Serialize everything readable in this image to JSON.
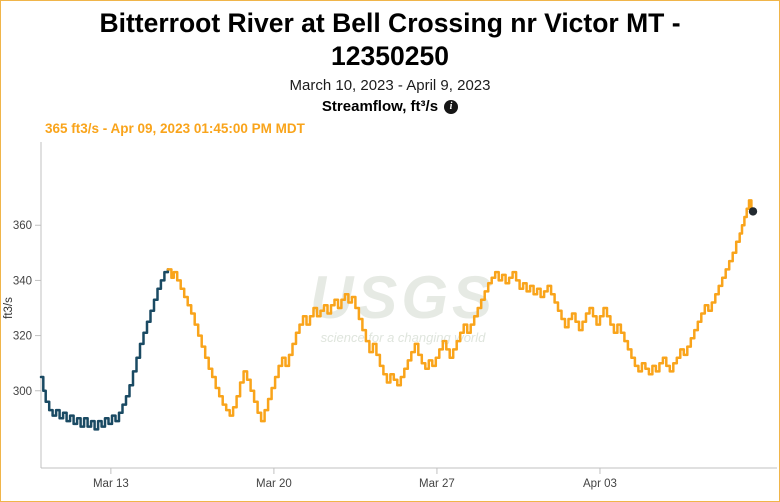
{
  "page": {
    "border_color": "#f0b54a",
    "background": "#ffffff"
  },
  "header": {
    "title_line1": "Bitterroot River at Bell Crossing nr Victor MT -",
    "title_line2": "12350250",
    "date_range": "March 10, 2023 - April 9, 2023",
    "parameter_label": "Streamflow, ft³/s",
    "info_icon_glyph": "i"
  },
  "current_reading": {
    "label": "365 ft3/s - Apr 09, 2023 01:45:00 PM MDT",
    "color": "#f9a41b"
  },
  "chart_data": {
    "type": "line",
    "interpolation": "step-after",
    "title": "Bitterroot River at Bell Crossing nr Victor MT - 12350250",
    "ylabel": "ft3/s",
    "grid": false,
    "legend_position": "none",
    "axis_color": "#c0c0c0",
    "tick_label_color": "#444444",
    "x_axis": {
      "unit": "days since 2023-03-10",
      "lim": [
        0,
        31
      ],
      "ticks": [
        {
          "x": 3,
          "label": "Mar 13"
        },
        {
          "x": 10,
          "label": "Mar 20"
        },
        {
          "x": 17,
          "label": "Mar 27"
        },
        {
          "x": 24,
          "label": "Apr 03"
        }
      ]
    },
    "y_axis": {
      "lim": [
        272,
        388
      ],
      "ticks": [
        300,
        320,
        340,
        360
      ]
    },
    "watermark": {
      "text": "USGS",
      "tagline": "science for a changing world",
      "color": "#e6eae4",
      "tagline_color": "#dfe5dd"
    },
    "series": [
      {
        "name": "streamflow-early",
        "color": "#1a4a63",
        "points": [
          [
            0,
            305
          ],
          [
            0.1,
            300
          ],
          [
            0.2,
            296
          ],
          [
            0.35,
            293
          ],
          [
            0.5,
            291
          ],
          [
            0.65,
            293
          ],
          [
            0.8,
            290
          ],
          [
            0.95,
            292
          ],
          [
            1.1,
            289
          ],
          [
            1.25,
            291
          ],
          [
            1.4,
            288
          ],
          [
            1.55,
            290
          ],
          [
            1.7,
            287
          ],
          [
            1.85,
            290
          ],
          [
            2,
            287
          ],
          [
            2.15,
            289
          ],
          [
            2.3,
            286
          ],
          [
            2.45,
            289
          ],
          [
            2.6,
            287
          ],
          [
            2.75,
            290
          ],
          [
            2.9,
            288
          ],
          [
            3.05,
            291
          ],
          [
            3.2,
            289
          ],
          [
            3.35,
            292
          ],
          [
            3.5,
            295
          ],
          [
            3.65,
            298
          ],
          [
            3.8,
            302
          ],
          [
            3.95,
            307
          ],
          [
            4.1,
            312
          ],
          [
            4.25,
            317
          ],
          [
            4.4,
            321
          ],
          [
            4.55,
            325
          ],
          [
            4.7,
            329
          ],
          [
            4.85,
            333
          ],
          [
            5,
            337
          ],
          [
            5.15,
            340
          ],
          [
            5.3,
            343
          ],
          [
            5.45,
            344
          ]
        ]
      },
      {
        "name": "streamflow-recent",
        "color": "#f9a41b",
        "points": [
          [
            5.45,
            344
          ],
          [
            5.6,
            341
          ],
          [
            5.7,
            343
          ],
          [
            5.85,
            340
          ],
          [
            6,
            337
          ],
          [
            6.15,
            334
          ],
          [
            6.3,
            331
          ],
          [
            6.45,
            328
          ],
          [
            6.6,
            324
          ],
          [
            6.75,
            320
          ],
          [
            6.9,
            316
          ],
          [
            7.05,
            312
          ],
          [
            7.2,
            308
          ],
          [
            7.35,
            305
          ],
          [
            7.5,
            301
          ],
          [
            7.65,
            298
          ],
          [
            7.8,
            295
          ],
          [
            7.95,
            293
          ],
          [
            8.1,
            291
          ],
          [
            8.25,
            294
          ],
          [
            8.4,
            298
          ],
          [
            8.55,
            303
          ],
          [
            8.7,
            307
          ],
          [
            8.85,
            304
          ],
          [
            9,
            300
          ],
          [
            9.15,
            296
          ],
          [
            9.3,
            292
          ],
          [
            9.45,
            289
          ],
          [
            9.6,
            293
          ],
          [
            9.75,
            297
          ],
          [
            9.9,
            301
          ],
          [
            10.05,
            305
          ],
          [
            10.2,
            309
          ],
          [
            10.35,
            312
          ],
          [
            10.5,
            309
          ],
          [
            10.65,
            313
          ],
          [
            10.8,
            317
          ],
          [
            10.95,
            321
          ],
          [
            11.1,
            324
          ],
          [
            11.25,
            327
          ],
          [
            11.4,
            324
          ],
          [
            11.55,
            327
          ],
          [
            11.7,
            330
          ],
          [
            11.85,
            327
          ],
          [
            12,
            329
          ],
          [
            12.15,
            331
          ],
          [
            12.3,
            328
          ],
          [
            12.45,
            331
          ],
          [
            12.6,
            333
          ],
          [
            12.75,
            330
          ],
          [
            12.9,
            333
          ],
          [
            13.05,
            335
          ],
          [
            13.2,
            332
          ],
          [
            13.35,
            334
          ],
          [
            13.5,
            330
          ],
          [
            13.65,
            326
          ],
          [
            13.8,
            322
          ],
          [
            13.95,
            318
          ],
          [
            14.1,
            314
          ],
          [
            14.25,
            317
          ],
          [
            14.4,
            313
          ],
          [
            14.55,
            309
          ],
          [
            14.7,
            306
          ],
          [
            14.85,
            303
          ],
          [
            15,
            306
          ],
          [
            15.15,
            304
          ],
          [
            15.3,
            302
          ],
          [
            15.45,
            305
          ],
          [
            15.6,
            308
          ],
          [
            15.75,
            311
          ],
          [
            15.9,
            314
          ],
          [
            16.05,
            317
          ],
          [
            16.2,
            313
          ],
          [
            16.35,
            310
          ],
          [
            16.5,
            308
          ],
          [
            16.65,
            311
          ],
          [
            16.8,
            309
          ],
          [
            16.95,
            312
          ],
          [
            17.1,
            315
          ],
          [
            17.25,
            318
          ],
          [
            17.4,
            315
          ],
          [
            17.55,
            312
          ],
          [
            17.7,
            315
          ],
          [
            17.85,
            318
          ],
          [
            18,
            321
          ],
          [
            18.15,
            324
          ],
          [
            18.3,
            321
          ],
          [
            18.45,
            324
          ],
          [
            18.6,
            327
          ],
          [
            18.75,
            330
          ],
          [
            18.9,
            333
          ],
          [
            19.05,
            336
          ],
          [
            19.2,
            339
          ],
          [
            19.35,
            341
          ],
          [
            19.5,
            343
          ],
          [
            19.65,
            340
          ],
          [
            19.8,
            342
          ],
          [
            19.95,
            339
          ],
          [
            20.1,
            341
          ],
          [
            20.25,
            343
          ],
          [
            20.4,
            340
          ],
          [
            20.55,
            337
          ],
          [
            20.7,
            339
          ],
          [
            20.85,
            336
          ],
          [
            21,
            338
          ],
          [
            21.15,
            335
          ],
          [
            21.3,
            337
          ],
          [
            21.45,
            334
          ],
          [
            21.6,
            336
          ],
          [
            21.75,
            338
          ],
          [
            21.9,
            335
          ],
          [
            22.05,
            332
          ],
          [
            22.2,
            329
          ],
          [
            22.35,
            326
          ],
          [
            22.5,
            323
          ],
          [
            22.65,
            326
          ],
          [
            22.8,
            328
          ],
          [
            22.95,
            325
          ],
          [
            23.1,
            322
          ],
          [
            23.25,
            325
          ],
          [
            23.4,
            328
          ],
          [
            23.55,
            330
          ],
          [
            23.7,
            327
          ],
          [
            23.85,
            324
          ],
          [
            24,
            327
          ],
          [
            24.15,
            330
          ],
          [
            24.3,
            327
          ],
          [
            24.45,
            324
          ],
          [
            24.6,
            321
          ],
          [
            24.75,
            324
          ],
          [
            24.9,
            321
          ],
          [
            25.05,
            318
          ],
          [
            25.2,
            315
          ],
          [
            25.35,
            312
          ],
          [
            25.5,
            309
          ],
          [
            25.65,
            307
          ],
          [
            25.8,
            310
          ],
          [
            25.95,
            308
          ],
          [
            26.1,
            306
          ],
          [
            26.25,
            309
          ],
          [
            26.4,
            307
          ],
          [
            26.55,
            310
          ],
          [
            26.7,
            312
          ],
          [
            26.85,
            309
          ],
          [
            27,
            307
          ],
          [
            27.15,
            310
          ],
          [
            27.3,
            312
          ],
          [
            27.45,
            315
          ],
          [
            27.6,
            313
          ],
          [
            27.75,
            316
          ],
          [
            27.9,
            319
          ],
          [
            28.05,
            322
          ],
          [
            28.2,
            325
          ],
          [
            28.35,
            328
          ],
          [
            28.5,
            331
          ],
          [
            28.65,
            329
          ],
          [
            28.8,
            332
          ],
          [
            28.95,
            335
          ],
          [
            29.1,
            338
          ],
          [
            29.25,
            341
          ],
          [
            29.4,
            344
          ],
          [
            29.55,
            347
          ],
          [
            29.7,
            350
          ],
          [
            29.85,
            354
          ],
          [
            30,
            357
          ],
          [
            30.1,
            360
          ],
          [
            30.2,
            363
          ],
          [
            30.3,
            366
          ],
          [
            30.4,
            369
          ],
          [
            30.5,
            366
          ],
          [
            30.57,
            365
          ]
        ]
      }
    ],
    "last_point": {
      "x": 30.57,
      "y": 365,
      "value_label": "365",
      "dot_color": "#222a30"
    }
  }
}
